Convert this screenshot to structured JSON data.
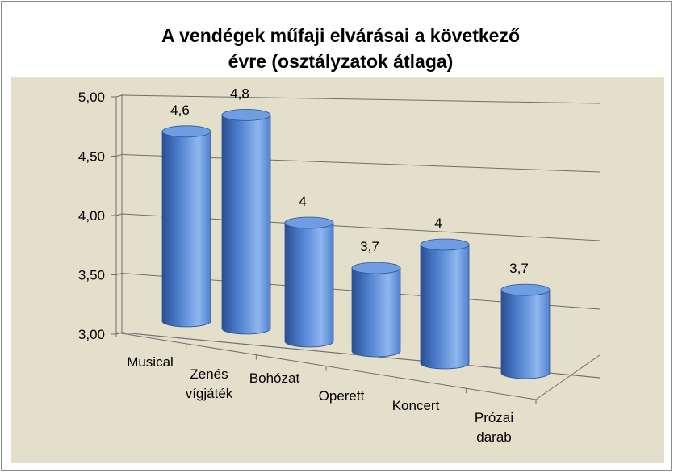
{
  "chart_data": {
    "type": "bar",
    "title_lines": [
      "A vendégek műfaji elvárásai a következő",
      "évre (osztályzatok átlaga)"
    ],
    "xlabel": "",
    "ylabel": "",
    "categories": [
      [
        "Musical"
      ],
      [
        "Zenés",
        "vígjáték"
      ],
      [
        "Bohózat"
      ],
      [
        "Operett"
      ],
      [
        "Koncert"
      ],
      [
        "Prózai",
        "darab"
      ]
    ],
    "values": [
      4.6,
      4.8,
      4.0,
      3.7,
      4.0,
      3.7
    ],
    "data_labels": [
      "4,6",
      "4,8",
      "4",
      "3,7",
      "4",
      "3,7"
    ],
    "ylim": [
      3.0,
      5.0
    ],
    "yticks": [
      3.0,
      3.5,
      4.0,
      4.5,
      5.0
    ],
    "ytick_labels": [
      "3,00",
      "3,50",
      "4,00",
      "4,50",
      "5,00"
    ],
    "style": "3d-cylinder",
    "grid": true,
    "legend": "none",
    "colors": {
      "bar_light": "#8fb6ee",
      "bar_mid": "#4f81d0",
      "bar_dark": "#2a4f93",
      "bar_top": "#6e9de3",
      "plot_area": "#e3dfca",
      "gridline": "#6e6e6e"
    }
  }
}
